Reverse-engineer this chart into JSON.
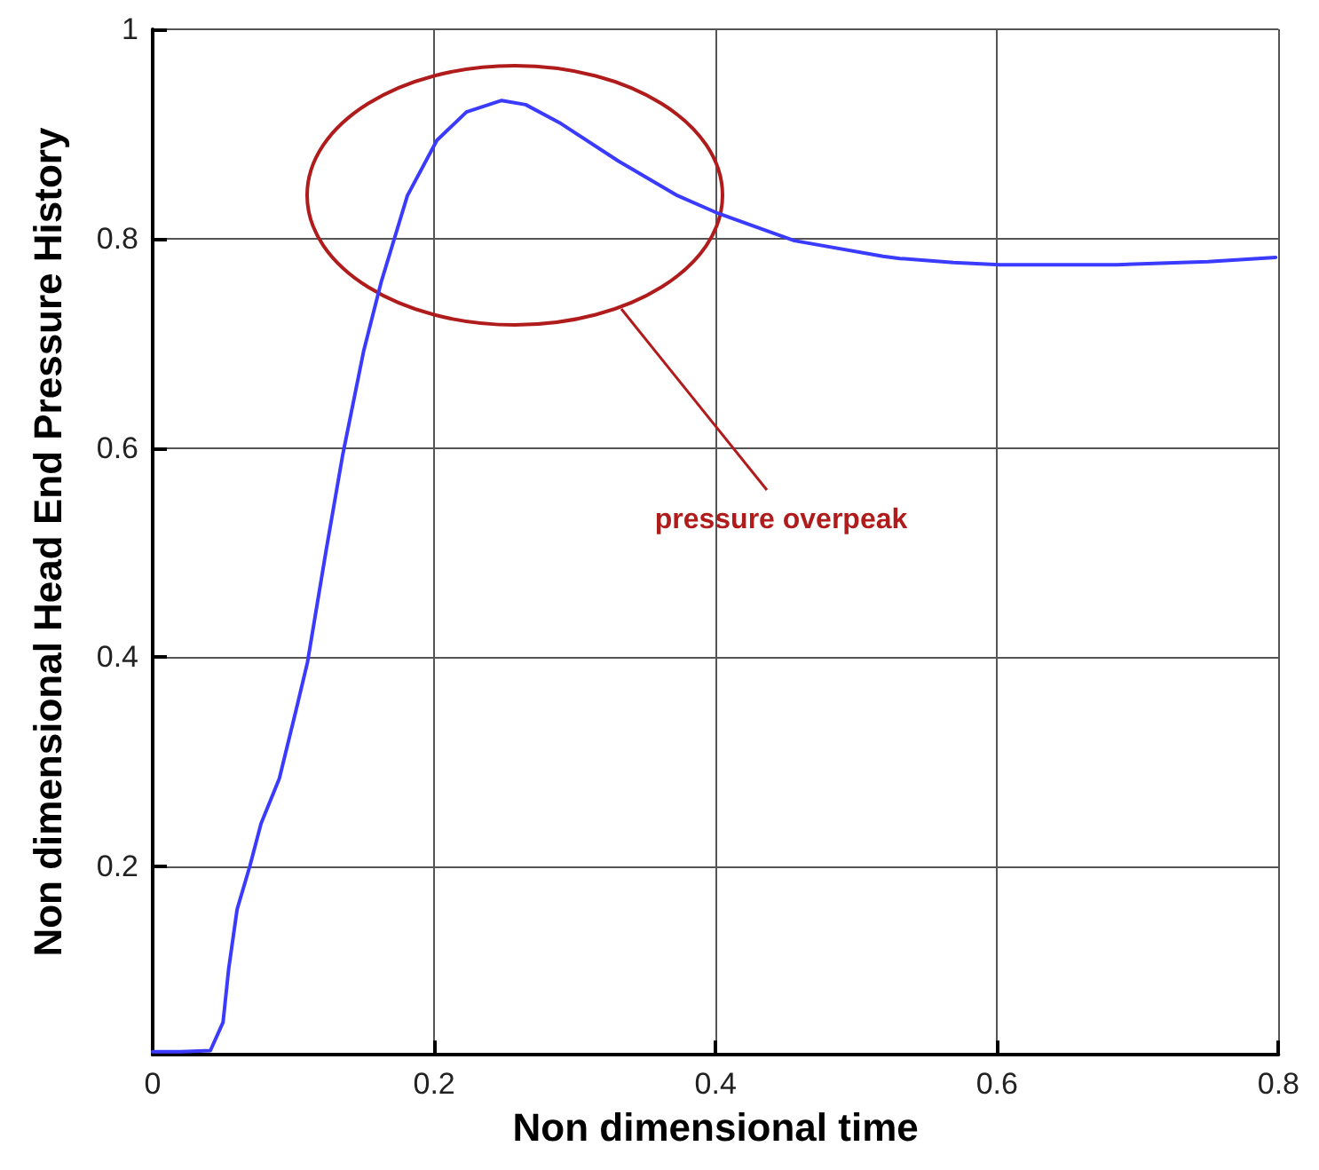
{
  "chart_data": {
    "type": "line",
    "xlabel": "Non dimensional time",
    "ylabel": "Non dimensional Head End Pressure History",
    "x": [
      0,
      0.02,
      0.041,
      0.05,
      0.054,
      0.06,
      0.069,
      0.077,
      0.09,
      0.102,
      0.11,
      0.123,
      0.135,
      0.15,
      0.1625,
      0.181,
      0.202,
      0.223,
      0.248,
      0.265,
      0.29,
      0.331,
      0.373,
      0.402,
      0.456,
      0.519,
      0.531,
      0.569,
      0.602,
      0.685,
      0.75,
      0.798
    ],
    "series": [
      {
        "color": "#3b3bff",
        "values": [
          0.023,
          0.023,
          0.024,
          0.051,
          0.102,
          0.159,
          0.2,
          0.241,
          0.284,
          0.35,
          0.395,
          0.5,
          0.593,
          0.693,
          0.759,
          0.841,
          0.894,
          0.921,
          0.932,
          0.928,
          0.91,
          0.874,
          0.841,
          0.824,
          0.798,
          0.783,
          0.781,
          0.777,
          0.775,
          0.775,
          0.778,
          0.782
        ]
      }
    ],
    "xlim": [
      0,
      0.8
    ],
    "ylim": [
      0.02,
      1
    ],
    "xticks": [
      0,
      0.2,
      0.4,
      0.6,
      0.8
    ],
    "yticks": [
      0.2,
      0.4,
      0.6,
      0.8,
      1
    ],
    "grid": true,
    "marker": "none",
    "line_style": "solid",
    "annotations": [
      "pressure overpeak"
    ]
  }
}
